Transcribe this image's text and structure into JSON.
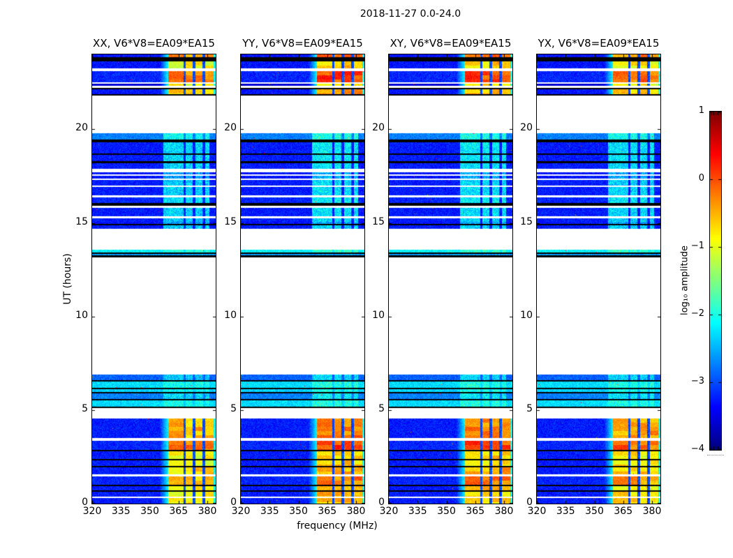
{
  "title": "2018-11-27 0.0-24.0",
  "chart_data": {
    "type": "heatmap",
    "description": "Four dynamic-spectrum (waterfall) panels of cross-correlation amplitude vs frequency and time, sharing axes, with a jet colorbar.",
    "panels": [
      {
        "label": "XX, V6*V8=EA09*EA15"
      },
      {
        "label": "YY, V6*V8=EA09*EA15"
      },
      {
        "label": "XY, V6*V8=EA09*EA15"
      },
      {
        "label": "YX, V6*V8=EA09*EA15"
      }
    ],
    "xlabel": "frequency (MHz)",
    "ylabel": "UT (hours)",
    "x_ticks": [
      320,
      335,
      350,
      365,
      380
    ],
    "x_tick_labels": [
      "320",
      "335",
      "350",
      "365",
      "380"
    ],
    "y_ticks": [
      0,
      5,
      10,
      15,
      20
    ],
    "y_tick_labels": [
      "0",
      "5",
      "10",
      "15",
      "20"
    ],
    "xlim": [
      320,
      384.4
    ],
    "ylim": [
      0,
      24
    ],
    "grid": false,
    "colorbar": {
      "label": "log₁₀ amplitude",
      "colormap": "jet",
      "range": [
        -4,
        1
      ],
      "tick_values": [
        1,
        0,
        -1,
        -2,
        -3,
        -4
      ],
      "tick_labels": [
        "1",
        "0",
        "−1",
        "−2",
        "−3",
        "−4"
      ]
    },
    "rfi_band_mhz": [
      359.5,
      383
    ],
    "rfi_gaps_mhz": [
      [
        367.3,
        368.6
      ],
      [
        372.3,
        373.6
      ],
      [
        377.3,
        378.6
      ]
    ],
    "panel_rfi_offsets": [
      0,
      0.3,
      0.25,
      0.12
    ],
    "bands_format": "[ut_start, ut_end, base_log10_amp or 'black' (flagged), rfi_log10_amp or null, rfi_type 's'=strong blocks 'c'=cyan speckle]",
    "bands": [
      [
        23.85,
        24.0,
        -3.3,
        -0.45,
        "s"
      ],
      [
        23.62,
        23.85,
        "black",
        null,
        null
      ],
      [
        23.25,
        23.62,
        -3.3,
        -0.95,
        "s"
      ],
      [
        22.52,
        23.12,
        -3.2,
        -0.25,
        "s"
      ],
      [
        22.32,
        22.42,
        -3.6,
        -1.0,
        "s"
      ],
      [
        22.12,
        22.22,
        "black",
        null,
        null
      ],
      [
        21.88,
        22.12,
        -3.3,
        -0.75,
        "s"
      ],
      [
        21.8,
        21.88,
        "black",
        null,
        null
      ],
      [
        19.46,
        19.78,
        -2.75,
        -2.1,
        "c"
      ],
      [
        19.31,
        19.46,
        "black",
        null,
        null
      ],
      [
        18.71,
        19.31,
        -3.25,
        -2.3,
        "c"
      ],
      [
        18.62,
        18.71,
        "black",
        null,
        null
      ],
      [
        18.3,
        18.62,
        -3.25,
        -2.3,
        "c"
      ],
      [
        18.19,
        18.3,
        "black",
        null,
        null
      ],
      [
        17.89,
        18.19,
        -3.25,
        -2.35,
        "c"
      ],
      [
        17.59,
        17.72,
        -3.3,
        -2.6,
        "c"
      ],
      [
        17.37,
        17.52,
        -3.3,
        -2.6,
        "c"
      ],
      [
        17.0,
        17.29,
        -3.25,
        -2.4,
        "c"
      ],
      [
        16.47,
        16.92,
        -3.25,
        -2.35,
        "c"
      ],
      [
        16.06,
        16.36,
        -3.2,
        -2.25,
        "c"
      ],
      [
        15.91,
        16.06,
        "black",
        null,
        null
      ],
      [
        15.36,
        15.8,
        -3.25,
        -2.35,
        "c"
      ],
      [
        15.06,
        15.24,
        -3.25,
        -2.4,
        "c"
      ],
      [
        14.94,
        15.06,
        -3.3,
        -2.6,
        "c"
      ],
      [
        14.87,
        14.94,
        "black",
        null,
        null
      ],
      [
        14.69,
        14.87,
        -3.25,
        -2.4,
        "c"
      ],
      [
        13.42,
        13.57,
        -2.15,
        -2.0,
        "c"
      ],
      [
        13.34,
        13.42,
        "black",
        null,
        null
      ],
      [
        13.27,
        13.34,
        -2.6,
        null,
        null
      ],
      [
        13.16,
        13.27,
        "black",
        null,
        null
      ],
      [
        6.6,
        6.9,
        -2.9,
        -2.4,
        "c"
      ],
      [
        6.52,
        6.6,
        "black",
        null,
        null
      ],
      [
        6.19,
        6.52,
        -2.3,
        -2.1,
        "c"
      ],
      [
        6.11,
        6.19,
        "black",
        null,
        null
      ],
      [
        5.96,
        6.11,
        -2.35,
        -2.15,
        "c"
      ],
      [
        5.89,
        5.96,
        "black",
        null,
        null
      ],
      [
        5.59,
        5.89,
        -2.75,
        -2.3,
        "c"
      ],
      [
        5.52,
        5.59,
        "black",
        null,
        null
      ],
      [
        5.18,
        5.52,
        -2.3,
        -2.1,
        "c"
      ],
      [
        5.11,
        5.18,
        "black",
        null,
        null
      ],
      [
        3.5,
        4.55,
        -3.25,
        -0.55,
        "s"
      ],
      [
        2.87,
        3.35,
        -3.2,
        -0.25,
        "s"
      ],
      [
        2.8,
        2.87,
        "black",
        null,
        null
      ],
      [
        2.39,
        2.8,
        -3.25,
        -0.95,
        "s"
      ],
      [
        2.31,
        2.39,
        "black",
        null,
        null
      ],
      [
        2.01,
        2.31,
        -3.25,
        -0.95,
        "s"
      ],
      [
        1.94,
        2.01,
        "black",
        null,
        null
      ],
      [
        1.57,
        1.94,
        -3.25,
        -0.75,
        "s"
      ],
      [
        1.01,
        1.45,
        -3.2,
        -0.55,
        "s"
      ],
      [
        0.93,
        1.01,
        "black",
        null,
        null
      ],
      [
        0.71,
        0.93,
        -3.25,
        -0.9,
        "s"
      ],
      [
        0.63,
        0.71,
        "black",
        null,
        null
      ],
      [
        0.37,
        0.63,
        -3.25,
        -0.9,
        "s"
      ],
      [
        0.0,
        0.3,
        -3.25,
        -0.85,
        "s"
      ]
    ]
  }
}
